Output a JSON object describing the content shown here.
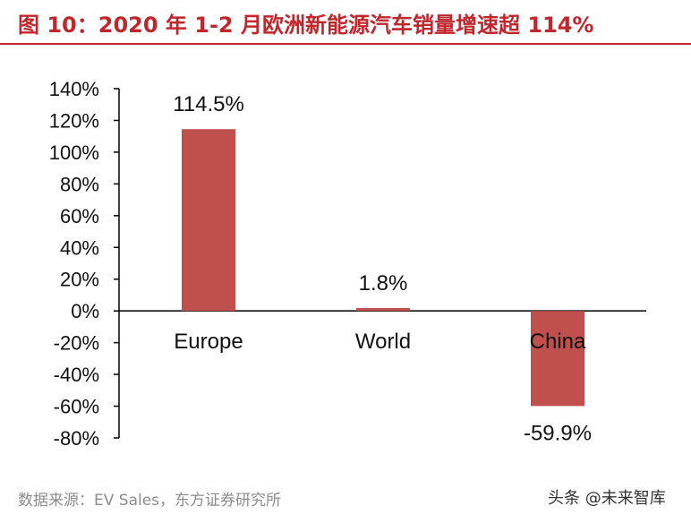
{
  "header": {
    "title": "图 10：2020 年 1-2 月欧洲新能源汽车销量增速超 114%"
  },
  "footer": {
    "source": "数据来源：EV Sales，东方证券研究所",
    "watermark": "头条 @未来智库"
  },
  "colors": {
    "accent": "#c0272d",
    "bar": "#c0504d",
    "axis": "#000000"
  },
  "chart_data": {
    "type": "bar",
    "title": "",
    "xlabel": "",
    "ylabel": "",
    "categories": [
      "Europe",
      "World",
      "China"
    ],
    "values": [
      114.5,
      1.8,
      -59.9
    ],
    "data_labels": [
      "114.5%",
      "1.8%",
      "-59.9%"
    ],
    "ylim": [
      -80,
      140
    ],
    "yticks": [
      140,
      120,
      100,
      80,
      60,
      40,
      20,
      0,
      -20,
      -40,
      -60,
      -80
    ],
    "ytick_labels": [
      "140%",
      "120%",
      "100%",
      "80%",
      "60%",
      "40%",
      "20%",
      "0%",
      "-20%",
      "-40%",
      "-60%",
      "-80%"
    ],
    "grid": false,
    "legend": "none"
  }
}
